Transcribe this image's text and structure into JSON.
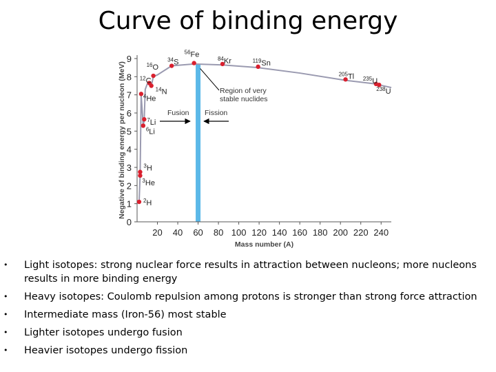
{
  "slide": {
    "title": "Curve of binding energy"
  },
  "chart_data": {
    "type": "line",
    "xlabel": "Mass number (A)",
    "ylabel": "Negative of binding energy per nucleon (MeV)",
    "xlim": [
      0,
      250
    ],
    "ylim": [
      0,
      9
    ],
    "x_ticks": [
      20,
      40,
      60,
      80,
      100,
      120,
      140,
      160,
      180,
      200,
      220,
      240
    ],
    "y_ticks": [
      0,
      1,
      2,
      3,
      4,
      5,
      6,
      7,
      8,
      9
    ],
    "grid": false,
    "series": [
      {
        "values": [
          {
            "x": 2,
            "y": 1.1
          },
          {
            "x": 3,
            "y": 2.6
          },
          {
            "x": 4,
            "y": 7.0
          },
          {
            "x": 6,
            "y": 5.3
          },
          {
            "x": 7,
            "y": 5.6
          },
          {
            "x": 8,
            "y": 7.3
          },
          {
            "x": 10,
            "y": 7.6
          },
          {
            "x": 12,
            "y": 7.6
          },
          {
            "x": 14,
            "y": 7.5
          },
          {
            "x": 16,
            "y": 8.0
          },
          {
            "x": 20,
            "y": 8.1
          },
          {
            "x": 34,
            "y": 8.6
          },
          {
            "x": 56,
            "y": 8.7
          },
          {
            "x": 84,
            "y": 8.65
          },
          {
            "x": 119,
            "y": 8.5
          },
          {
            "x": 160,
            "y": 8.2
          },
          {
            "x": 205,
            "y": 7.8
          },
          {
            "x": 235,
            "y": 7.6
          },
          {
            "x": 238,
            "y": 7.55
          },
          {
            "x": 250,
            "y": 7.4
          }
        ]
      }
    ],
    "markers": [
      {
        "label": "2H",
        "mass": "2",
        "symbol": "H",
        "x": 2,
        "y": 1.1
      },
      {
        "label": "3H",
        "mass": "3",
        "symbol": "H",
        "x": 3,
        "y": 2.75
      },
      {
        "label": "3He",
        "mass": "3",
        "symbol": "He",
        "x": 3,
        "y": 2.55
      },
      {
        "label": "4He",
        "mass": "4",
        "symbol": "He",
        "x": 4,
        "y": 7.05
      },
      {
        "label": "6Li",
        "mass": "6",
        "symbol": "Li",
        "x": 6,
        "y": 5.3
      },
      {
        "label": "7Li",
        "mass": "7",
        "symbol": "Li",
        "x": 7,
        "y": 5.65
      },
      {
        "label": "12C",
        "mass": "12",
        "symbol": "C",
        "x": 12,
        "y": 7.65
      },
      {
        "label": "14N",
        "mass": "14",
        "symbol": "N",
        "x": 14,
        "y": 7.5
      },
      {
        "label": "16O",
        "mass": "16",
        "symbol": "O",
        "x": 16,
        "y": 8.05
      },
      {
        "label": "34S",
        "mass": "34",
        "symbol": "S",
        "x": 34,
        "y": 8.6
      },
      {
        "label": "56Fe",
        "mass": "56",
        "symbol": "Fe",
        "x": 56,
        "y": 8.75
      },
      {
        "label": "84Kr",
        "mass": "84",
        "symbol": "Kr",
        "x": 84,
        "y": 8.7
      },
      {
        "label": "119Sn",
        "mass": "119",
        "symbol": "Sn",
        "x": 119,
        "y": 8.55
      },
      {
        "label": "205Tl",
        "mass": "205",
        "symbol": "Tl",
        "x": 205,
        "y": 7.85
      },
      {
        "label": "235U",
        "mass": "235",
        "symbol": "U",
        "x": 235,
        "y": 7.6
      },
      {
        "label": "238U",
        "mass": "238",
        "symbol": "U",
        "x": 238,
        "y": 7.55
      }
    ],
    "region": {
      "x_center": 60,
      "label_line1": "Region of very",
      "label_line2": "stable nuclides"
    },
    "annotations": {
      "fusion": "Fusion",
      "fission": "Fission"
    },
    "colors": {
      "curve": "#9a9ab0",
      "marker": "#d9202e",
      "region": "#5bb8e8"
    }
  },
  "bullets": [
    "Light isotopes: strong nuclear force results in attraction between nucleons; more nucleons results in more binding energy",
    "Heavy isotopes: Coulomb repulsion among protons is stronger than strong force attraction",
    "Intermediate mass (Iron-56) most stable",
    "Lighter isotopes undergo fusion",
    "Heavier isotopes undergo fission"
  ]
}
